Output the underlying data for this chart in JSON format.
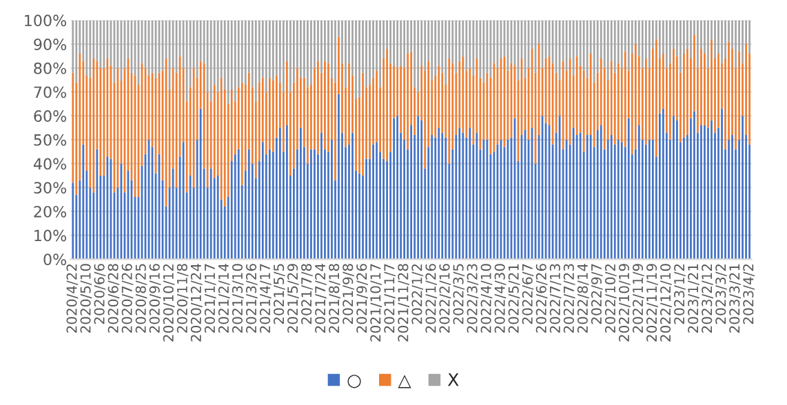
{
  "chart_data": {
    "type": "bar",
    "stacked": true,
    "categories": [
      "2020/4/22",
      null,
      null,
      null,
      "2020/5/10",
      null,
      null,
      null,
      "2020/6/6",
      null,
      null,
      null,
      "2020/6/28",
      null,
      null,
      null,
      "2020/7/26",
      null,
      null,
      null,
      "2020/8/25",
      null,
      null,
      null,
      "2020/9/16",
      null,
      null,
      null,
      "2020/10/12",
      null,
      null,
      null,
      "2020/11/8",
      null,
      null,
      null,
      "2020/12/24",
      null,
      null,
      null,
      "2021/1/17",
      null,
      null,
      null,
      "2021/2/14",
      null,
      null,
      null,
      "2021/3/10",
      null,
      null,
      null,
      "2021/3/26",
      null,
      null,
      null,
      "2021/4/17",
      null,
      null,
      null,
      "2021/5/5",
      null,
      null,
      null,
      "2021/5/29",
      null,
      null,
      null,
      "2021/7/8",
      null,
      null,
      null,
      "2021/7/24",
      null,
      null,
      null,
      "2021/8/18",
      null,
      null,
      null,
      "2021/9/8",
      null,
      null,
      null,
      "2021/9/26",
      null,
      null,
      null,
      "2021/10/17",
      null,
      null,
      null,
      "2021/11/7",
      null,
      null,
      null,
      "2021/11/28",
      null,
      null,
      null,
      "2022/1/2",
      null,
      null,
      null,
      "2022/1/26",
      null,
      null,
      null,
      "2022/2/16",
      null,
      null,
      null,
      "2022/3/5",
      null,
      null,
      null,
      "2022/3/23",
      null,
      null,
      null,
      "2022/4/10",
      null,
      null,
      null,
      "2022/4/30",
      null,
      null,
      null,
      "2022/5/21",
      null,
      null,
      null,
      "2022/6/7",
      null,
      null,
      null,
      "2022/6/26",
      null,
      null,
      null,
      "2022/7/13",
      null,
      null,
      null,
      "2022/7/23",
      null,
      null,
      null,
      "2022/8/14",
      null,
      null,
      null,
      "2022/9/7",
      null,
      null,
      null,
      "2022/10/2",
      null,
      null,
      null,
      "2022/10/19",
      null,
      null,
      null,
      "2022/11/9",
      null,
      null,
      null,
      "2022/11/19",
      null,
      null,
      null,
      "2022/12/10",
      null,
      null,
      null,
      "2023/1/2",
      null,
      null,
      null,
      "2023/1/21",
      null,
      null,
      null,
      "2023/2/12",
      null,
      null,
      null,
      "2023/3/2",
      null,
      null,
      null,
      "2023/3/21",
      null,
      null,
      null,
      "2023/4/2"
    ],
    "series": [
      {
        "name": "○",
        "color": "#4472c4",
        "values": [
          32,
          27,
          33,
          48,
          37,
          30,
          28,
          46,
          35,
          35,
          43,
          42,
          28,
          30,
          40,
          28,
          37,
          33,
          26,
          26,
          39,
          44,
          50,
          47,
          36,
          44,
          33,
          22,
          30,
          38,
          30,
          43,
          49,
          28,
          35,
          30,
          50,
          63,
          38,
          30,
          38,
          34,
          35,
          25,
          22,
          26,
          41,
          44,
          46,
          31,
          37,
          46,
          40,
          34,
          41,
          49,
          44,
          46,
          45,
          51,
          55,
          45,
          56,
          35,
          38,
          46,
          55,
          47,
          40,
          46,
          46,
          44,
          53,
          46,
          45,
          50,
          33,
          69,
          53,
          47,
          48,
          53,
          37,
          36,
          35,
          42,
          42,
          48,
          49,
          45,
          42,
          41,
          45,
          59,
          60,
          53,
          50,
          46,
          56,
          52,
          60,
          58,
          38,
          47,
          52,
          51,
          55,
          53,
          51,
          40,
          46,
          52,
          55,
          53,
          51,
          55,
          48,
          53,
          46,
          50,
          50,
          44,
          45,
          48,
          50,
          47,
          50,
          51,
          59,
          41,
          52,
          54,
          50,
          55,
          40,
          52,
          60,
          57,
          56,
          48,
          53,
          60,
          46,
          50,
          48,
          55,
          52,
          53,
          45,
          52,
          52,
          47,
          54,
          56,
          46,
          50,
          52,
          48,
          50,
          49,
          47,
          59,
          44,
          46,
          56,
          50,
          48,
          50,
          50,
          43,
          61,
          63,
          53,
          50,
          60,
          58,
          49,
          51,
          52,
          59,
          62,
          53,
          56,
          56,
          55,
          58,
          53,
          55,
          63,
          46,
          50,
          52,
          46,
          50,
          60,
          52,
          48
        ]
      },
      {
        "name": "△",
        "color": "#ed7d31",
        "values": [
          46,
          47,
          53,
          35,
          40,
          46,
          56,
          37,
          45,
          45,
          41,
          39,
          46,
          50,
          35,
          52,
          47,
          45,
          51,
          47,
          43,
          36,
          27,
          31,
          40,
          34,
          46,
          62,
          41,
          42,
          48,
          42,
          31,
          38,
          37,
          50,
          26,
          20,
          44,
          40,
          28,
          39,
          35,
          51,
          49,
          39,
          30,
          22,
          26,
          43,
          36,
          32,
          32,
          32,
          33,
          27,
          26,
          30,
          30,
          26,
          19,
          25,
          27,
          35,
          36,
          34,
          21,
          29,
          32,
          27,
          34,
          39,
          25,
          37,
          37,
          26,
          41,
          24,
          29,
          25,
          34,
          24,
          30,
          32,
          43,
          30,
          31,
          28,
          30,
          27,
          42,
          47,
          37,
          22,
          20,
          28,
          30,
          40,
          31,
          20,
          10,
          23,
          41,
          36,
          23,
          26,
          26,
          25,
          22,
          44,
          36,
          26,
          28,
          32,
          28,
          25,
          29,
          31,
          30,
          24,
          28,
          32,
          37,
          32,
          34,
          38,
          29,
          31,
          22,
          34,
          32,
          22,
          30,
          33,
          38,
          38,
          20,
          27,
          29,
          34,
          25,
          15,
          37,
          29,
          36,
          22,
          33,
          28,
          34,
          24,
          34,
          27,
          24,
          28,
          34,
          25,
          31,
          30,
          32,
          31,
          40,
          20,
          42,
          44,
          29,
          30,
          36,
          30,
          38,
          49,
          23,
          23,
          27,
          32,
          28,
          27,
          29,
          35,
          36,
          25,
          32,
          27,
          32,
          30,
          25,
          34,
          31,
          31,
          19,
          38,
          41,
          36,
          34,
          37,
          22,
          38,
          38
        ]
      },
      {
        "name": "X",
        "color": "#a5a5a5",
        "values": [
          22,
          26,
          14,
          17,
          23,
          24,
          16,
          17,
          20,
          20,
          16,
          19,
          26,
          20,
          25,
          20,
          16,
          22,
          23,
          27,
          18,
          20,
          23,
          22,
          24,
          22,
          21,
          16,
          29,
          20,
          22,
          15,
          20,
          34,
          28,
          20,
          24,
          17,
          18,
          30,
          34,
          27,
          30,
          24,
          29,
          35,
          29,
          34,
          28,
          26,
          27,
          22,
          28,
          34,
          26,
          24,
          30,
          24,
          25,
          23,
          26,
          30,
          17,
          30,
          26,
          20,
          24,
          24,
          28,
          27,
          20,
          17,
          22,
          17,
          18,
          24,
          26,
          7,
          18,
          28,
          18,
          23,
          33,
          32,
          22,
          28,
          27,
          24,
          21,
          28,
          16,
          12,
          18,
          19,
          20,
          19,
          20,
          14,
          13,
          28,
          30,
          19,
          21,
          17,
          25,
          23,
          19,
          22,
          27,
          16,
          18,
          22,
          17,
          15,
          21,
          20,
          23,
          16,
          24,
          26,
          22,
          24,
          18,
          20,
          16,
          15,
          21,
          18,
          19,
          25,
          16,
          24,
          20,
          12,
          22,
          10,
          20,
          16,
          15,
          18,
          22,
          25,
          17,
          21,
          16,
          23,
          15,
          19,
          21,
          24,
          14,
          26,
          22,
          16,
          20,
          25,
          17,
          22,
          18,
          20,
          13,
          21,
          14,
          10,
          15,
          20,
          16,
          20,
          12,
          8,
          16,
          14,
          20,
          18,
          12,
          15,
          22,
          14,
          12,
          16,
          6,
          20,
          12,
          14,
          20,
          8,
          16,
          14,
          18,
          16,
          9,
          12,
          20,
          13,
          18,
          10,
          14
        ]
      }
    ],
    "ylim": [
      0,
      100
    ],
    "yticks": [
      {
        "value": 0,
        "label": "0%"
      },
      {
        "value": 10,
        "label": "10%"
      },
      {
        "value": 20,
        "label": "20%"
      },
      {
        "value": 30,
        "label": "30%"
      },
      {
        "value": 40,
        "label": "40%"
      },
      {
        "value": 50,
        "label": "50%"
      },
      {
        "value": 60,
        "label": "60%"
      },
      {
        "value": 70,
        "label": "70%"
      },
      {
        "value": 80,
        "label": "80%"
      },
      {
        "value": 90,
        "label": "90%"
      },
      {
        "value": 100,
        "label": "100%"
      }
    ],
    "grid": "y",
    "legend": "bottom"
  }
}
